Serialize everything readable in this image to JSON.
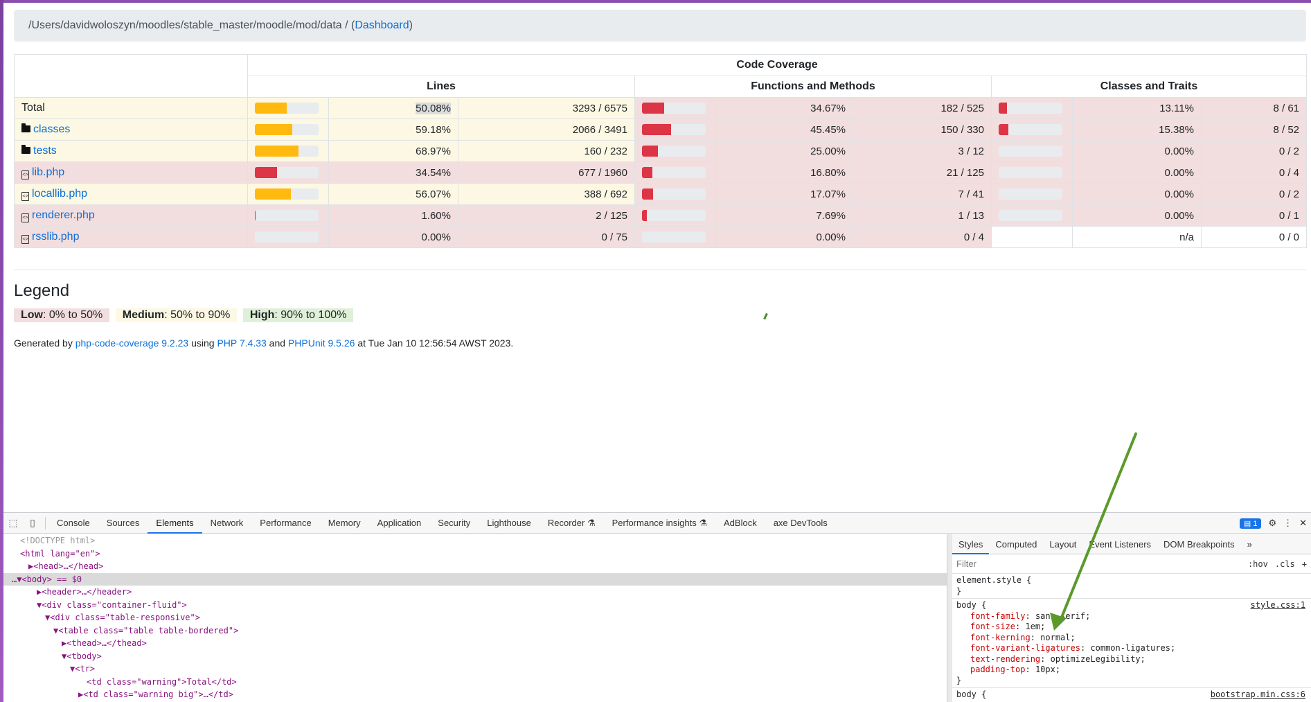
{
  "breadcrumb": {
    "path": "/Users/davidwoloszyn/moodles/stable_master/moodle/mod/data  /  (",
    "link": "Dashboard",
    "close": ")"
  },
  "table": {
    "header_top": "Code Coverage",
    "groups": [
      "Lines",
      "Functions and Methods",
      "Classes and Traits"
    ],
    "rows": [
      {
        "name": "Total",
        "type": "total",
        "lines": {
          "pct": "50.08%",
          "frac": "3293 / 6575",
          "fill": 50.08,
          "cls": "warning"
        },
        "funcs": {
          "pct": "34.67%",
          "frac": "182 / 525",
          "fill": 34.67,
          "cls": "danger"
        },
        "classes": {
          "pct": "13.11%",
          "frac": "8 / 61",
          "fill": 13.11,
          "cls": "danger"
        }
      },
      {
        "name": "classes",
        "type": "folder",
        "lines": {
          "pct": "59.18%",
          "frac": "2066 / 3491",
          "fill": 59.18,
          "cls": "warning"
        },
        "funcs": {
          "pct": "45.45%",
          "frac": "150 / 330",
          "fill": 45.45,
          "cls": "danger"
        },
        "classes": {
          "pct": "15.38%",
          "frac": "8 / 52",
          "fill": 15.38,
          "cls": "danger"
        }
      },
      {
        "name": "tests",
        "type": "folder",
        "lines": {
          "pct": "68.97%",
          "frac": "160 / 232",
          "fill": 68.97,
          "cls": "warning"
        },
        "funcs": {
          "pct": "25.00%",
          "frac": "3 / 12",
          "fill": 25.0,
          "cls": "danger"
        },
        "classes": {
          "pct": "0.00%",
          "frac": "0 / 2",
          "fill": 0,
          "cls": "danger"
        }
      },
      {
        "name": "lib.php",
        "type": "file",
        "lines": {
          "pct": "34.54%",
          "frac": "677 / 1960",
          "fill": 34.54,
          "cls": "danger"
        },
        "funcs": {
          "pct": "16.80%",
          "frac": "21 / 125",
          "fill": 16.8,
          "cls": "danger"
        },
        "classes": {
          "pct": "0.00%",
          "frac": "0 / 4",
          "fill": 0,
          "cls": "danger"
        }
      },
      {
        "name": "locallib.php",
        "type": "file",
        "lines": {
          "pct": "56.07%",
          "frac": "388 / 692",
          "fill": 56.07,
          "cls": "warning"
        },
        "funcs": {
          "pct": "17.07%",
          "frac": "7 / 41",
          "fill": 17.07,
          "cls": "danger"
        },
        "classes": {
          "pct": "0.00%",
          "frac": "0 / 2",
          "fill": 0,
          "cls": "danger"
        }
      },
      {
        "name": "renderer.php",
        "type": "file",
        "lines": {
          "pct": "1.60%",
          "frac": "2 / 125",
          "fill": 1.6,
          "cls": "danger"
        },
        "funcs": {
          "pct": "7.69%",
          "frac": "1 / 13",
          "fill": 7.69,
          "cls": "danger"
        },
        "classes": {
          "pct": "0.00%",
          "frac": "0 / 1",
          "fill": 0,
          "cls": "danger"
        }
      },
      {
        "name": "rsslib.php",
        "type": "file",
        "lines": {
          "pct": "0.00%",
          "frac": "0 / 75",
          "fill": 0,
          "cls": "danger"
        },
        "funcs": {
          "pct": "0.00%",
          "frac": "0 / 4",
          "fill": 0,
          "cls": "danger"
        },
        "classes": {
          "pct": "n/a",
          "frac": "0 / 0",
          "fill": null,
          "cls": "plain"
        }
      }
    ]
  },
  "legend": {
    "title": "Legend",
    "low_label": "Low",
    "low_range": ": 0% to 50%",
    "med_label": "Medium",
    "med_range": ": 50% to 90%",
    "high_label": "High",
    "high_range": ": 90% to 100%"
  },
  "generated": {
    "prefix": "Generated by ",
    "tool": "php-code-coverage 9.2.23",
    "using": " using ",
    "php": "PHP 7.4.33",
    "and": " and ",
    "phpunit": "PHPUnit 9.5.26",
    "suffix": " at Tue Jan 10 12:56:54 AWST 2023."
  },
  "devtools": {
    "tabs": [
      "Console",
      "Sources",
      "Elements",
      "Network",
      "Performance",
      "Memory",
      "Application",
      "Security",
      "Lighthouse",
      "Recorder ⚗",
      "Performance insights ⚗",
      "AdBlock",
      "axe DevTools"
    ],
    "active_tab": "Elements",
    "message_count": "1",
    "dom_lines": [
      {
        "text": "<!DOCTYPE html>",
        "indent": 2,
        "kind": "comment"
      },
      {
        "text": "<html lang=\"en\">",
        "indent": 2,
        "kind": "tag"
      },
      {
        "text": "▶<head>…</head>",
        "indent": 4,
        "kind": "tag"
      },
      {
        "text": "…▼<body> == $0",
        "indent": 0,
        "kind": "tag",
        "selected": true
      },
      {
        "text": "▶<header>…</header>",
        "indent": 6,
        "kind": "tag"
      },
      {
        "text": "▼<div class=\"container-fluid\">",
        "indent": 6,
        "kind": "tag"
      },
      {
        "text": "▼<div class=\"table-responsive\">",
        "indent": 8,
        "kind": "tag"
      },
      {
        "text": "▼<table class=\"table table-bordered\">",
        "indent": 10,
        "kind": "tag"
      },
      {
        "text": "▶<thead>…</thead>",
        "indent": 12,
        "kind": "tag"
      },
      {
        "text": "▼<tbody>",
        "indent": 12,
        "kind": "tag"
      },
      {
        "text": "▼<tr>",
        "indent": 14,
        "kind": "tag"
      },
      {
        "text": "<td class=\"warning\">Total</td>",
        "indent": 18,
        "kind": "tag"
      },
      {
        "text": "▶<td class=\"warning big\">…</td>",
        "indent": 16,
        "kind": "tag"
      }
    ],
    "styles_tabs": [
      "Styles",
      "Computed",
      "Layout",
      "Event Listeners",
      "DOM Breakpoints",
      "»"
    ],
    "filter_placeholder": "Filter",
    "filter_buttons": [
      ":hov",
      ".cls",
      "+"
    ],
    "element_style": "element.style {",
    "close_brace": "}",
    "body_rule": {
      "selector": "body {",
      "source": "style.css:1",
      "props": [
        {
          "name": "font-family",
          "value": "sans-serif;"
        },
        {
          "name": "font-size",
          "value": "1em;"
        },
        {
          "name": "font-kerning",
          "value": "normal;"
        },
        {
          "name": "font-variant-ligatures",
          "value": "common-ligatures;"
        },
        {
          "name": "text-rendering",
          "value": "optimizeLegibility;"
        },
        {
          "name": "padding-top",
          "value": "10px;"
        }
      ]
    },
    "next_rule": {
      "selector": "body {",
      "source": "bootstrap.min.css:6"
    }
  },
  "colors": {
    "warning_fill": "#ffb90f",
    "danger_fill": "#dc3545",
    "link": "#0b6fd8",
    "annotation_arrow": "#5a9a2a"
  }
}
